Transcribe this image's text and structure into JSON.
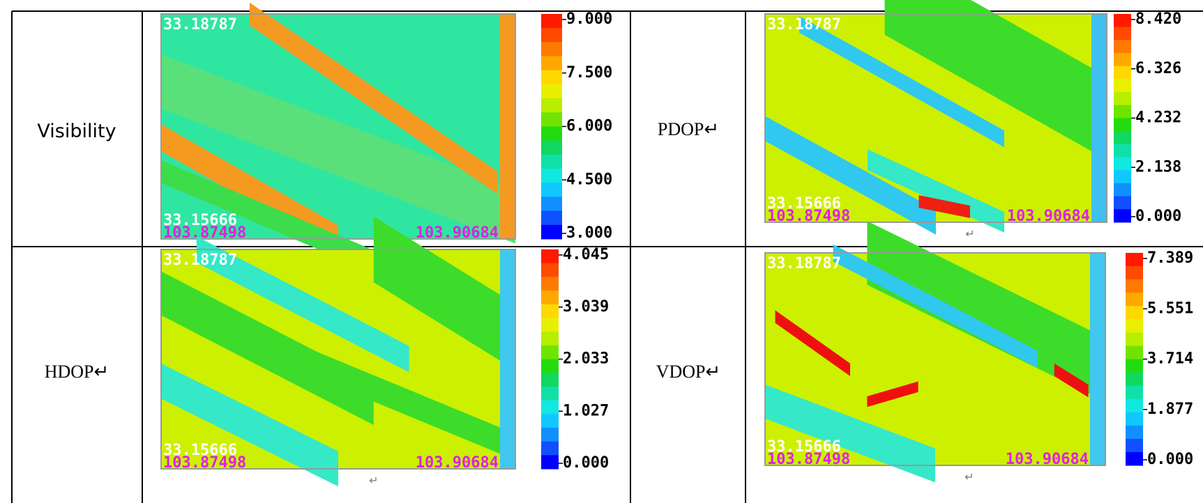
{
  "table": {
    "rows": [
      [
        {
          "label": "Visibility"
        },
        {
          "top_lat": "33.18787",
          "bottom_lat": "33.15666",
          "left_lon": "103.87498",
          "right_lon": "103.90684",
          "colorbar": [
            "9.000",
            "7.500",
            "6.000",
            "4.500",
            "3.000"
          ]
        },
        {
          "label": "PDOP↵"
        },
        {
          "top_lat": "33.18787",
          "bottom_lat": "33.15666",
          "left_lon": "103.87498",
          "right_lon": "103.90684",
          "colorbar": [
            "8.420",
            "6.326",
            "4.232",
            "2.138",
            "0.000"
          ],
          "caption": "↵"
        }
      ],
      [
        {
          "label": "HDOP↵"
        },
        {
          "top_lat": "33.18787",
          "bottom_lat": "33.15666",
          "left_lon": "103.87498",
          "right_lon": "103.90684",
          "colorbar": [
            "4.045",
            "3.039",
            "2.033",
            "1.027",
            "0.000"
          ],
          "caption": "↵"
        },
        {
          "label": "VDOP↵"
        },
        {
          "top_lat": "33.18787",
          "bottom_lat": "33.15666",
          "left_lon": "103.87498",
          "right_lon": "103.90684",
          "colorbar": [
            "7.389",
            "5.551",
            "3.714",
            "1.877",
            "0.000"
          ],
          "caption": "↵"
        }
      ]
    ]
  }
}
